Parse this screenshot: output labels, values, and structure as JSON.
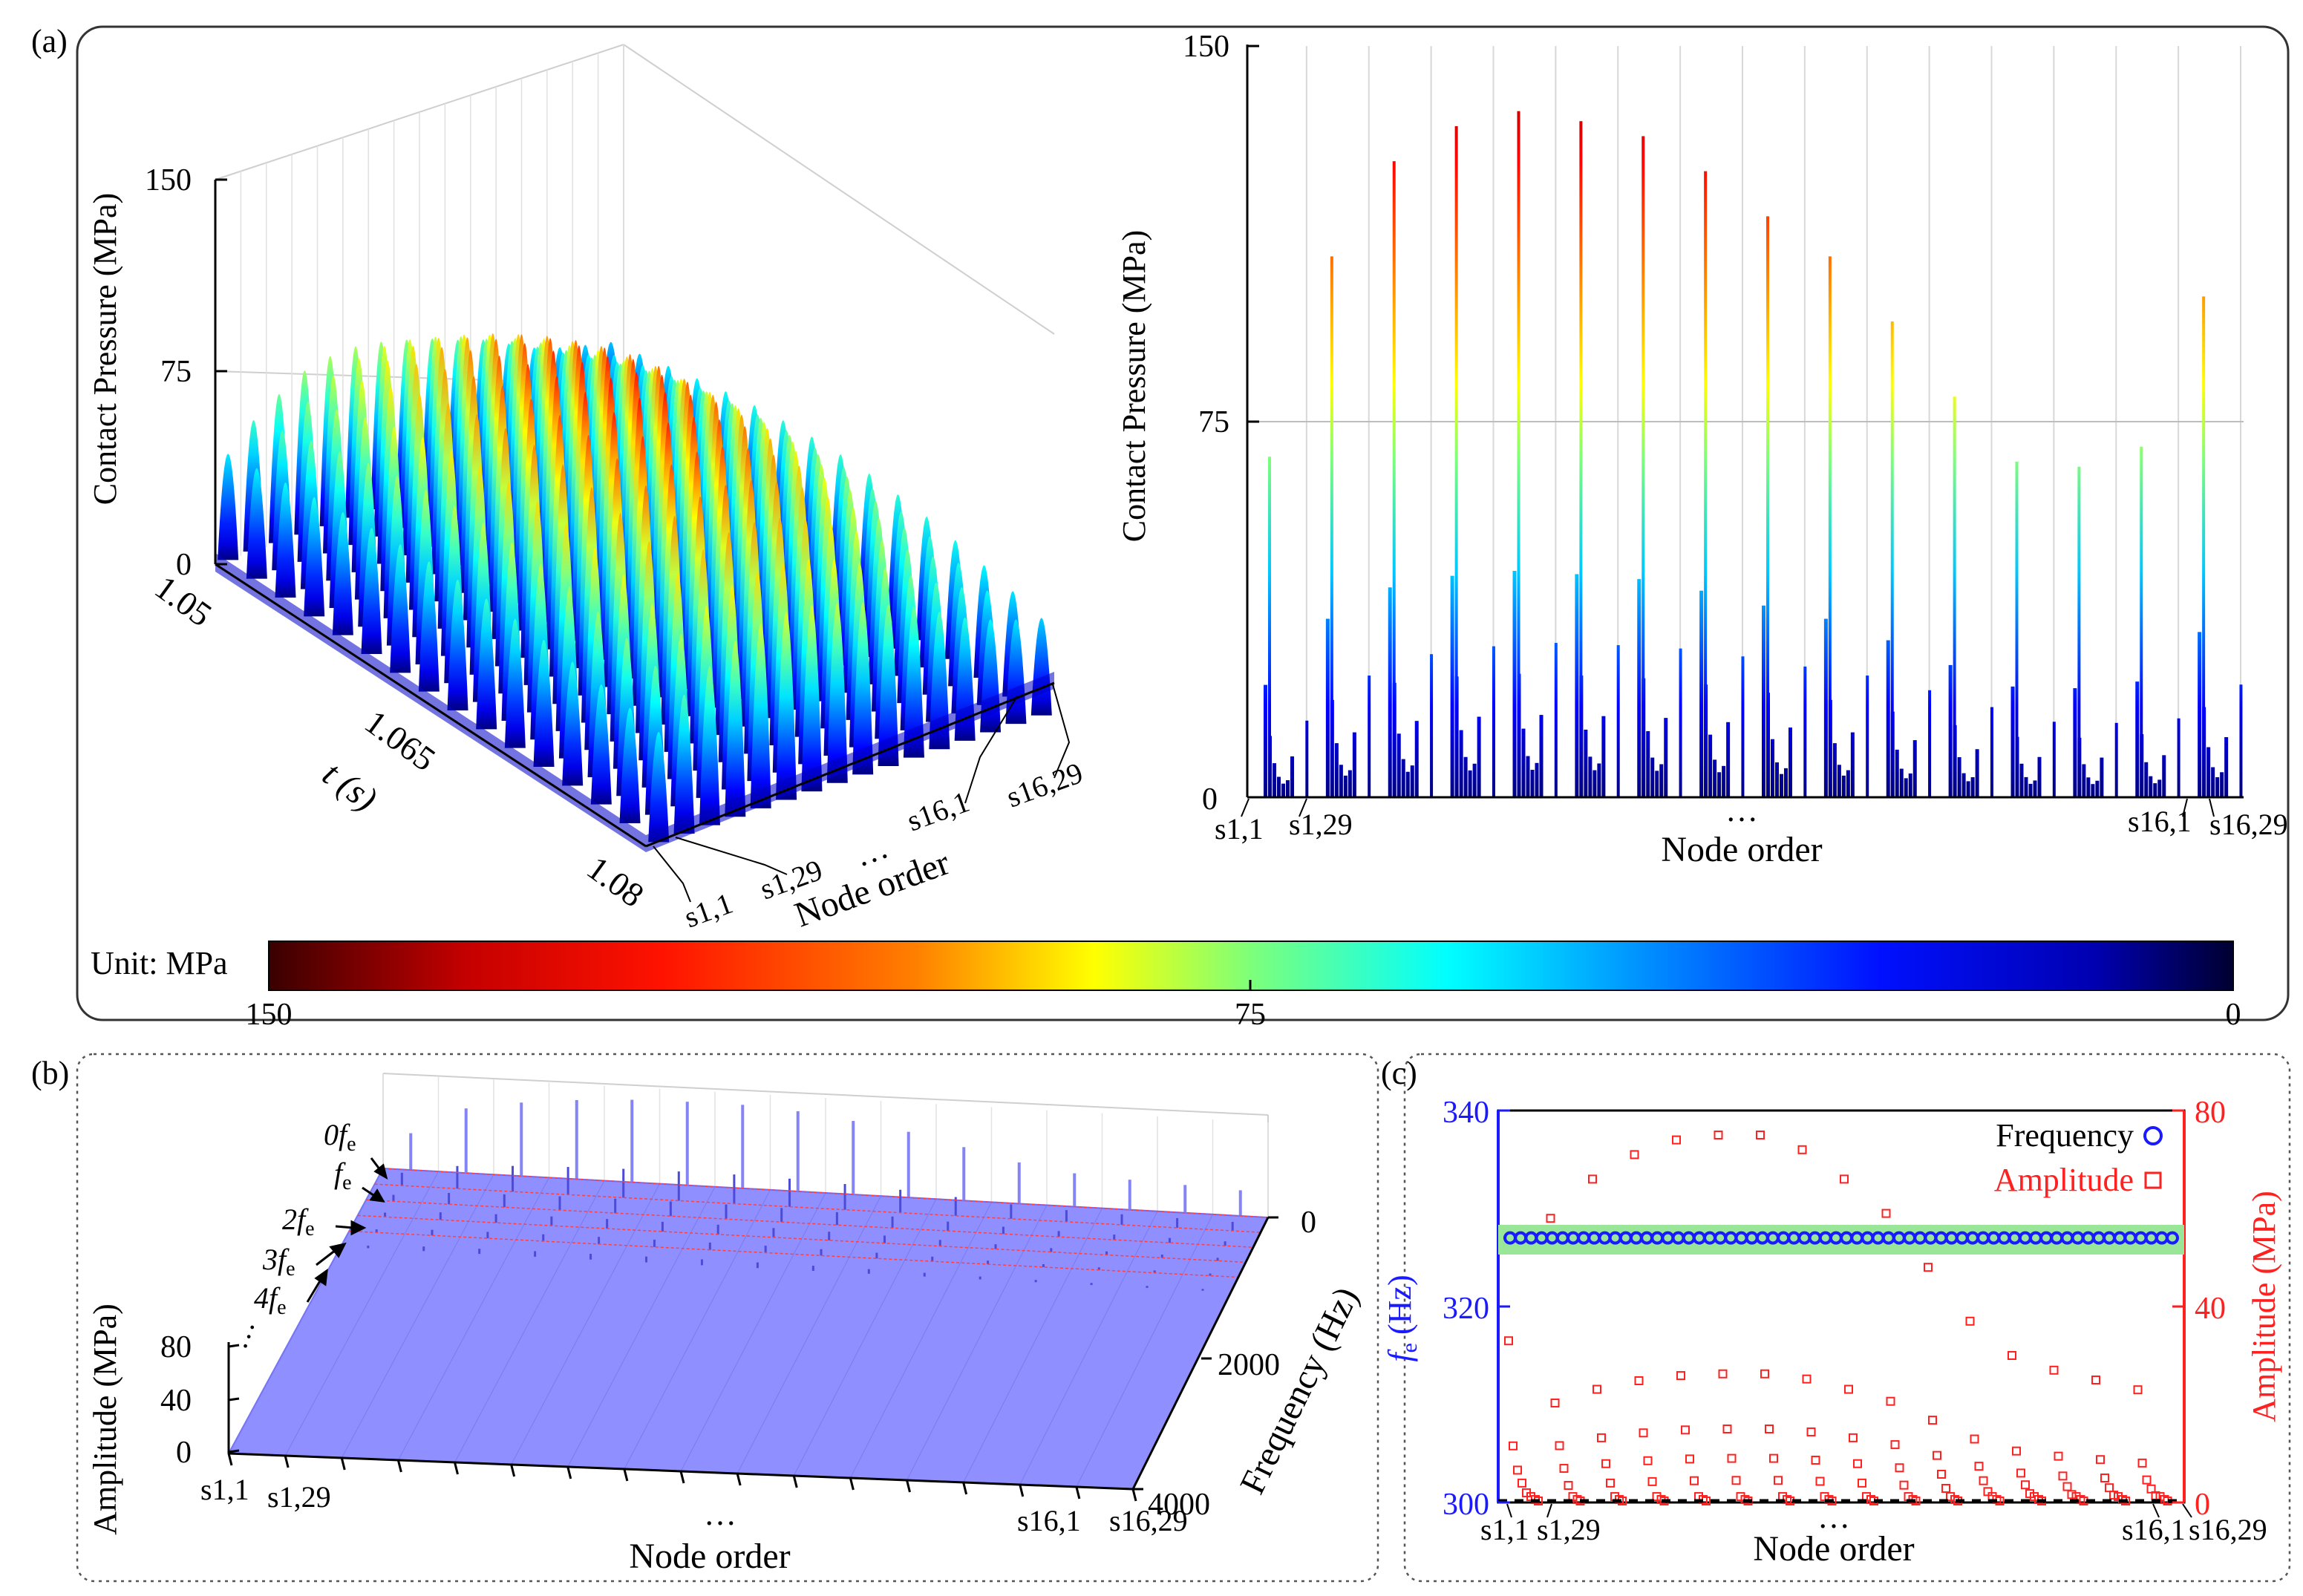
{
  "panel_labels": {
    "a": "(a)",
    "b": "(b)",
    "c": "(c)"
  },
  "colorbar": {
    "unit_label": "Unit: MPa",
    "ticks": [
      "150",
      "75",
      "0"
    ]
  },
  "chart_data": [
    {
      "id": "a-3d",
      "type": "surface3d",
      "zlabel": "Contact Pressure (MPa)",
      "ylabel": "t (s)",
      "xlabel": "Node order",
      "z_ticks": [
        "0",
        "75",
        "150"
      ],
      "t_ticks": [
        "1.05",
        "1.065",
        "1.08"
      ],
      "node_labels": {
        "first": "s1,1",
        "second": "s1,29",
        "ellipsis": "…",
        "third": "s16,1",
        "last": "s16,29"
      },
      "front_peaks": [
        58,
        80,
        95,
        108,
        118,
        125,
        128,
        127,
        122,
        115,
        105,
        95,
        85,
        75,
        65,
        58
      ],
      "back_peaks": [
        45,
        55,
        62,
        68,
        70,
        70,
        68,
        65,
        62,
        58,
        55,
        50,
        45,
        42,
        40,
        38
      ]
    },
    {
      "id": "a-2d",
      "type": "bar",
      "ylabel": "Contact Pressure (MPa)",
      "xlabel": "Node order",
      "y_ticks": [
        "0",
        "75",
        "150"
      ],
      "ylim": [
        0,
        150
      ],
      "node_labels": {
        "first": "s1,1",
        "second": "s1,29",
        "ellipsis": "…",
        "third": "s16,1",
        "last": "s16,29"
      },
      "peaks": [
        68,
        108,
        127,
        134,
        137,
        135,
        132,
        125,
        116,
        108,
        95,
        80,
        67,
        66,
        70,
        100
      ]
    },
    {
      "id": "b-spectrum",
      "type": "surface3d",
      "zlabel": "Amplitude (MPa)",
      "ylabel": "Frequency (Hz)",
      "xlabel": "Node order",
      "z_ticks": [
        "0",
        "40",
        "80"
      ],
      "freq_ticks": [
        "0",
        "2000",
        "4000"
      ],
      "harmonic_labels": [
        "0f",
        "f",
        "2f",
        "3f",
        "4f"
      ],
      "harmonic_subscript": "e",
      "ellipsis": "…",
      "node_labels": {
        "first": "s1,1",
        "second": "s1,29",
        "ellipsis": "…",
        "third": "s16,1",
        "last": "s16,29"
      }
    },
    {
      "id": "c-scatter",
      "type": "scatter",
      "xlabel": "Node order",
      "ylabel_left_symbol": "f",
      "ylabel_left_sub": "e",
      "ylabel_left_unit": " (Hz)",
      "ylabel_right": "Amplitude (MPa)",
      "left_ticks": [
        "300",
        "320",
        "340"
      ],
      "right_ticks": [
        "0",
        "40",
        "80"
      ],
      "ylim_left": [
        300,
        340
      ],
      "ylim_right": [
        0,
        80
      ],
      "frequency_value": 327,
      "legend": [
        "Frequency",
        "Amplitude"
      ],
      "node_labels": {
        "first": "s1,1",
        "second": "s1,29",
        "ellipsis": "…",
        "third": "s16,1",
        "last": "s16,29"
      },
      "amplitude_peaks": [
        33,
        58,
        66,
        71,
        74,
        75,
        75,
        72,
        66,
        59,
        48,
        37,
        30,
        27,
        25,
        23
      ]
    }
  ],
  "colors": {
    "freq": "#1a1aff",
    "amp": "#ff2020",
    "band": "#99e699",
    "spectrum": "#8f8fff"
  }
}
